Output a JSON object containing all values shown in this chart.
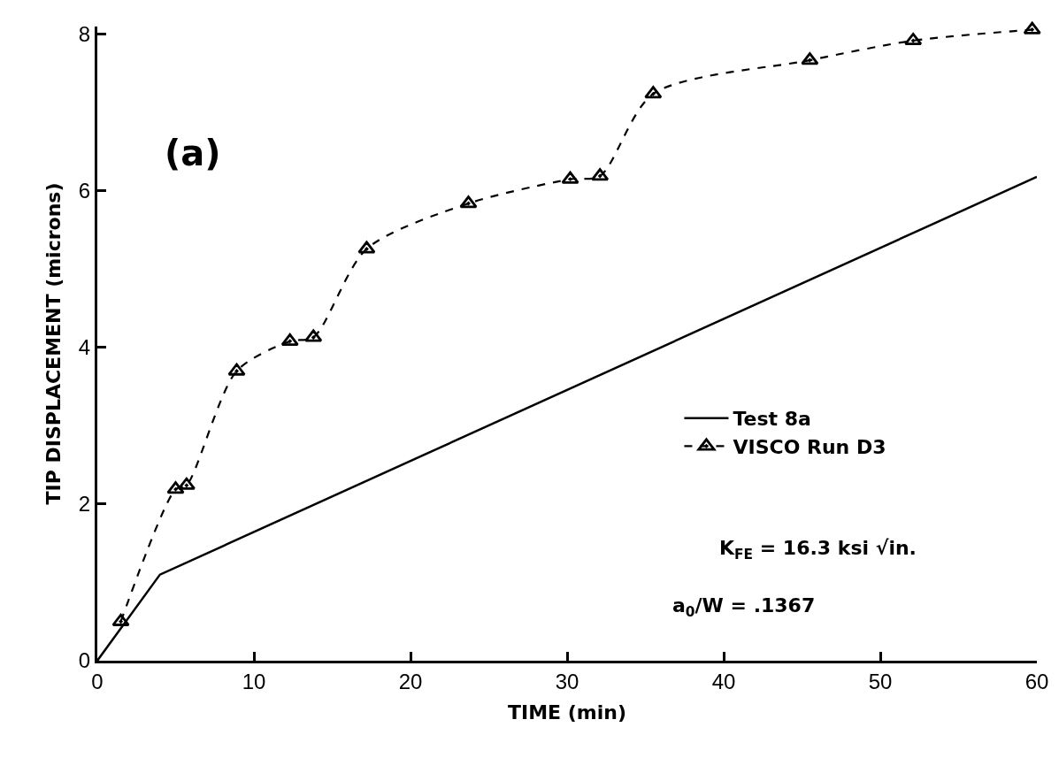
{
  "chart_data": {
    "type": "line",
    "xlabel": "TIME (min)",
    "ylabel": "TIP DISPLACEMENT (microns)",
    "xlim": [
      0,
      60
    ],
    "xticks": [
      0,
      10,
      20,
      30,
      40,
      50,
      60
    ],
    "ylim": [
      0,
      8.1
    ],
    "yticks": [
      0,
      2,
      4,
      6,
      8
    ],
    "legend": "right",
    "annotations": [
      "(a)",
      "K$_{FE}$ = 16.3 ksi √in.",
      "a$_{0}$/W = .1367"
    ],
    "series": [
      {
        "name": "Test 8a",
        "color": "#000000",
        "line_style": "solid",
        "marker": "none",
        "x": [
          0,
          4.0,
          60
        ],
        "values": [
          0,
          1.1,
          6.18
        ]
      },
      {
        "name": "VISCO Run D3",
        "color": "#000000",
        "line_style": "dashed",
        "marker": "triangle",
        "x": [
          1.5,
          5.0,
          5.7,
          8.9,
          12.3,
          13.8,
          17.2,
          23.7,
          30.2,
          32.1,
          35.5,
          45.5,
          52.1,
          59.7
        ],
        "values": [
          0.5,
          2.19,
          2.24,
          3.7,
          4.08,
          4.13,
          5.26,
          5.84,
          6.15,
          6.19,
          7.24,
          7.67,
          7.92,
          8.06
        ]
      }
    ]
  }
}
